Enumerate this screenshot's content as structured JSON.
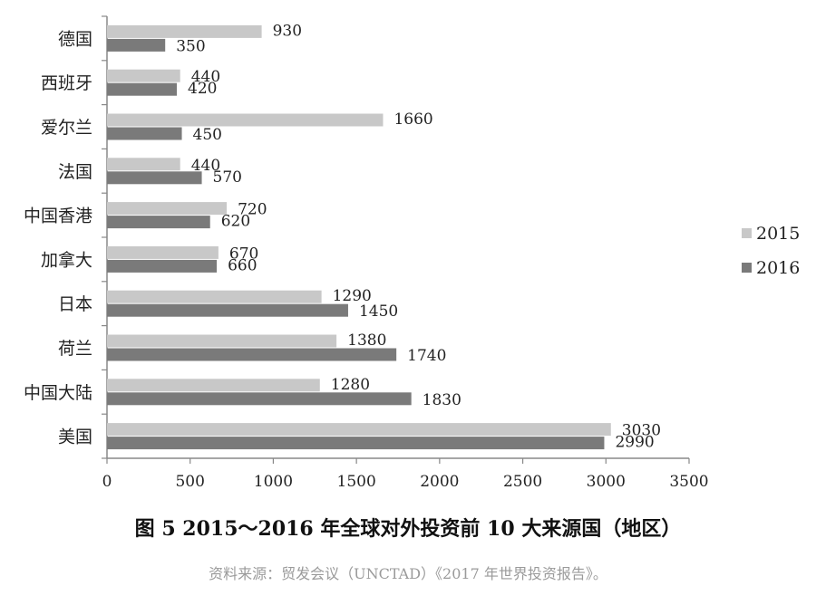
{
  "chart_data": {
    "type": "bar",
    "orientation": "horizontal",
    "categories": [
      "德国",
      "西班牙",
      "爱尔兰",
      "法国",
      "中国香港",
      "加拿大",
      "日本",
      "荷兰",
      "中国大陆",
      "美国"
    ],
    "series": [
      {
        "name": "2015",
        "color": "#c8c8c8",
        "values": [
          930,
          440,
          1660,
          440,
          720,
          670,
          1290,
          1380,
          1280,
          3030
        ]
      },
      {
        "name": "2016",
        "color": "#7a7a7a",
        "values": [
          350,
          420,
          450,
          570,
          620,
          660,
          1450,
          1740,
          1830,
          2990
        ]
      }
    ],
    "xlim": [
      0,
      3500
    ],
    "xticks": [
      "0",
      "500",
      "1000",
      "1500",
      "2000",
      "2500",
      "3000",
      "3500"
    ],
    "legend_position": "right",
    "grid": false
  },
  "caption": "图 5 2015～2016 年全球对外投资前 10 大来源国（地区）",
  "source": "资料来源：贸发会议（UNCTAD）《2017 年世界投资报告》。"
}
